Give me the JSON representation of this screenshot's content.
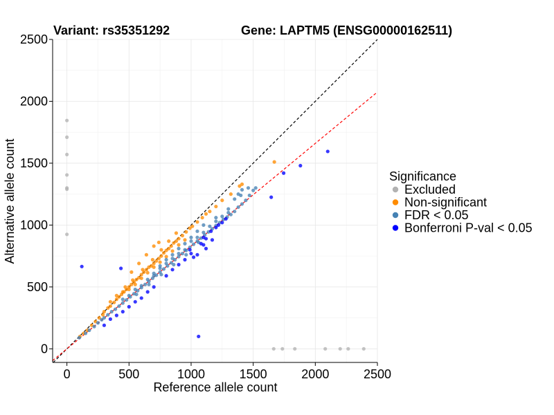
{
  "chart_data": {
    "type": "scatter",
    "title_left": "Variant: rs35351292",
    "title_right": "Gene: LAPTM5 (ENSG00000162511)",
    "xlabel": "Reference allele count",
    "ylabel": "Alternative allele count",
    "xlim": [
      -115,
      2500
    ],
    "ylim": [
      -110,
      2500
    ],
    "xticks": [
      0,
      500,
      1000,
      1500,
      2000,
      2500
    ],
    "yticks": [
      0,
      500,
      1000,
      1500,
      2000,
      2500
    ],
    "grid": true,
    "legend": {
      "title": "Significance",
      "placement": "right",
      "entries": [
        {
          "label": "Excluded",
          "color": "#b2b2b2"
        },
        {
          "label": "Non-significant",
          "color": "#ff8c00"
        },
        {
          "label": "FDR < 0.05",
          "color": "#4682b4"
        },
        {
          "label": "Bonferroni P-val < 0.05",
          "color": "#0000ff"
        }
      ]
    },
    "reference_lines": [
      {
        "name": "identity",
        "slope": 1.0,
        "intercept": 0,
        "color": "#000000",
        "dash": "dashed"
      },
      {
        "name": "fit",
        "slope": 0.83,
        "intercept": 0,
        "color": "#ff0000",
        "dash": "dashed"
      }
    ],
    "series": [
      {
        "name": "Excluded",
        "color": "#b2b2b2",
        "points": [
          [
            0,
            1845
          ],
          [
            0,
            1710
          ],
          [
            0,
            1570
          ],
          [
            0,
            1405
          ],
          [
            0,
            1300
          ],
          [
            0,
            1290
          ],
          [
            0,
            925
          ],
          [
            1665,
            0
          ],
          [
            1735,
            0
          ],
          [
            1835,
            0
          ],
          [
            2080,
            0
          ],
          [
            2200,
            0
          ],
          [
            2265,
            0
          ],
          [
            2390,
            0
          ]
        ]
      },
      {
        "name": "Non-significant",
        "color": "#ff8c00",
        "points": [
          [
            105,
            100
          ],
          [
            135,
            125
          ],
          [
            165,
            150
          ],
          [
            200,
            190
          ],
          [
            230,
            220
          ],
          [
            260,
            250
          ],
          [
            290,
            275
          ],
          [
            300,
            300
          ],
          [
            330,
            330
          ],
          [
            350,
            345
          ],
          [
            380,
            375
          ],
          [
            400,
            400
          ],
          [
            420,
            420
          ],
          [
            440,
            440
          ],
          [
            460,
            460
          ],
          [
            480,
            480
          ],
          [
            500,
            500
          ],
          [
            520,
            520
          ],
          [
            540,
            540
          ],
          [
            560,
            560
          ],
          [
            580,
            575
          ],
          [
            600,
            600
          ],
          [
            620,
            620
          ],
          [
            640,
            640
          ],
          [
            660,
            660
          ],
          [
            680,
            670
          ],
          [
            700,
            690
          ],
          [
            720,
            710
          ],
          [
            740,
            730
          ],
          [
            760,
            750
          ],
          [
            780,
            775
          ],
          [
            800,
            795
          ],
          [
            820,
            810
          ],
          [
            840,
            830
          ],
          [
            860,
            855
          ],
          [
            880,
            870
          ],
          [
            900,
            890
          ],
          [
            930,
            915
          ],
          [
            960,
            945
          ],
          [
            990,
            975
          ],
          [
            1010,
            990
          ],
          [
            1050,
            1025
          ],
          [
            1090,
            1060
          ],
          [
            1120,
            1090
          ],
          [
            1150,
            1110
          ],
          [
            1200,
            1150
          ],
          [
            1250,
            1200
          ],
          [
            1320,
            1250
          ],
          [
            1390,
            1315
          ],
          [
            1410,
            1330
          ],
          [
            1670,
            1510
          ],
          [
            450,
            460
          ],
          [
            500,
            480
          ],
          [
            550,
            520
          ],
          [
            600,
            570
          ],
          [
            650,
            615
          ],
          [
            700,
            660
          ],
          [
            750,
            700
          ],
          [
            800,
            745
          ],
          [
            850,
            790
          ],
          [
            900,
            840
          ],
          [
            950,
            880
          ],
          [
            470,
            500
          ],
          [
            530,
            555
          ],
          [
            610,
            640
          ],
          [
            690,
            720
          ],
          [
            760,
            800
          ],
          [
            820,
            870
          ],
          [
            880,
            935
          ],
          [
            740,
            860
          ],
          [
            700,
            830
          ],
          [
            640,
            760
          ],
          [
            580,
            690
          ],
          [
            520,
            620
          ],
          [
            400,
            430
          ],
          [
            350,
            380
          ]
        ]
      },
      {
        "name": "FDR < 0.05",
        "color": "#4682b4",
        "points": [
          [
            100,
            90
          ],
          [
            150,
            125
          ],
          [
            180,
            150
          ],
          [
            220,
            180
          ],
          [
            250,
            210
          ],
          [
            280,
            235
          ],
          [
            300,
            250
          ],
          [
            330,
            275
          ],
          [
            360,
            300
          ],
          [
            390,
            320
          ],
          [
            420,
            345
          ],
          [
            450,
            370
          ],
          [
            480,
            395
          ],
          [
            510,
            420
          ],
          [
            540,
            445
          ],
          [
            570,
            470
          ],
          [
            600,
            495
          ],
          [
            630,
            520
          ],
          [
            660,
            545
          ],
          [
            690,
            570
          ],
          [
            720,
            595
          ],
          [
            750,
            620
          ],
          [
            780,
            645
          ],
          [
            810,
            670
          ],
          [
            840,
            695
          ],
          [
            870,
            720
          ],
          [
            900,
            745
          ],
          [
            930,
            770
          ],
          [
            960,
            795
          ],
          [
            990,
            820
          ],
          [
            1020,
            845
          ],
          [
            1050,
            870
          ],
          [
            1080,
            895
          ],
          [
            1110,
            920
          ],
          [
            1140,
            945
          ],
          [
            1170,
            970
          ],
          [
            1200,
            995
          ],
          [
            1230,
            1020
          ],
          [
            1260,
            1045
          ],
          [
            1290,
            1065
          ],
          [
            1320,
            1085
          ],
          [
            1350,
            1110
          ],
          [
            1380,
            1145
          ],
          [
            1410,
            1170
          ],
          [
            1440,
            1200
          ],
          [
            1470,
            1240
          ],
          [
            1500,
            1280
          ],
          [
            1520,
            1300
          ],
          [
            1410,
            1285
          ],
          [
            1380,
            1250
          ],
          [
            1350,
            1210
          ],
          [
            1250,
            1070
          ],
          [
            1150,
            990
          ],
          [
            1050,
            900
          ],
          [
            950,
            800
          ],
          [
            850,
            730
          ],
          [
            750,
            650
          ],
          [
            650,
            560
          ],
          [
            550,
            480
          ],
          [
            450,
            400
          ],
          [
            500,
            430
          ],
          [
            600,
            510
          ],
          [
            700,
            590
          ],
          [
            800,
            690
          ],
          [
            900,
            770
          ],
          [
            1000,
            870
          ],
          [
            1100,
            940
          ],
          [
            1200,
            1030
          ],
          [
            1300,
            1100
          ],
          [
            1060,
            860
          ],
          [
            960,
            760
          ],
          [
            860,
            680
          ],
          [
            760,
            600
          ],
          [
            660,
            520
          ],
          [
            560,
            440
          ],
          [
            700,
            610
          ],
          [
            750,
            670
          ],
          [
            800,
            720
          ],
          [
            850,
            760
          ],
          [
            900,
            810
          ],
          [
            950,
            850
          ],
          [
            1000,
            900
          ],
          [
            1050,
            950
          ],
          [
            1100,
            1000
          ],
          [
            1200,
            1060
          ],
          [
            1300,
            1130
          ],
          [
            1400,
            1240
          ],
          [
            1460,
            1300
          ]
        ]
      },
      {
        "name": "Bonferroni P-val < 0.05",
        "color": "#0000ff",
        "points": [
          [
            2100,
            1595
          ],
          [
            1880,
            1480
          ],
          [
            1645,
            1225
          ],
          [
            1745,
            1420
          ],
          [
            120,
            665
          ],
          [
            435,
            650
          ],
          [
            1060,
            100
          ],
          [
            1100,
            900
          ],
          [
            1160,
            950
          ],
          [
            1220,
            1000
          ],
          [
            1280,
            1050
          ],
          [
            1120,
            890
          ],
          [
            1000,
            770
          ],
          [
            950,
            720
          ],
          [
            900,
            680
          ],
          [
            850,
            640
          ],
          [
            800,
            590
          ],
          [
            700,
            500
          ],
          [
            650,
            460
          ],
          [
            600,
            410
          ],
          [
            550,
            380
          ],
          [
            500,
            340
          ],
          [
            450,
            300
          ],
          [
            400,
            270
          ],
          [
            350,
            240
          ],
          [
            300,
            190
          ],
          [
            1050,
            760
          ],
          [
            1120,
            810
          ],
          [
            1080,
            850
          ],
          [
            1170,
            880
          ],
          [
            990,
            800
          ],
          [
            1200,
            980
          ],
          [
            1250,
            1020
          ],
          [
            1020,
            740
          ],
          [
            1100,
            840
          ]
        ]
      }
    ]
  }
}
